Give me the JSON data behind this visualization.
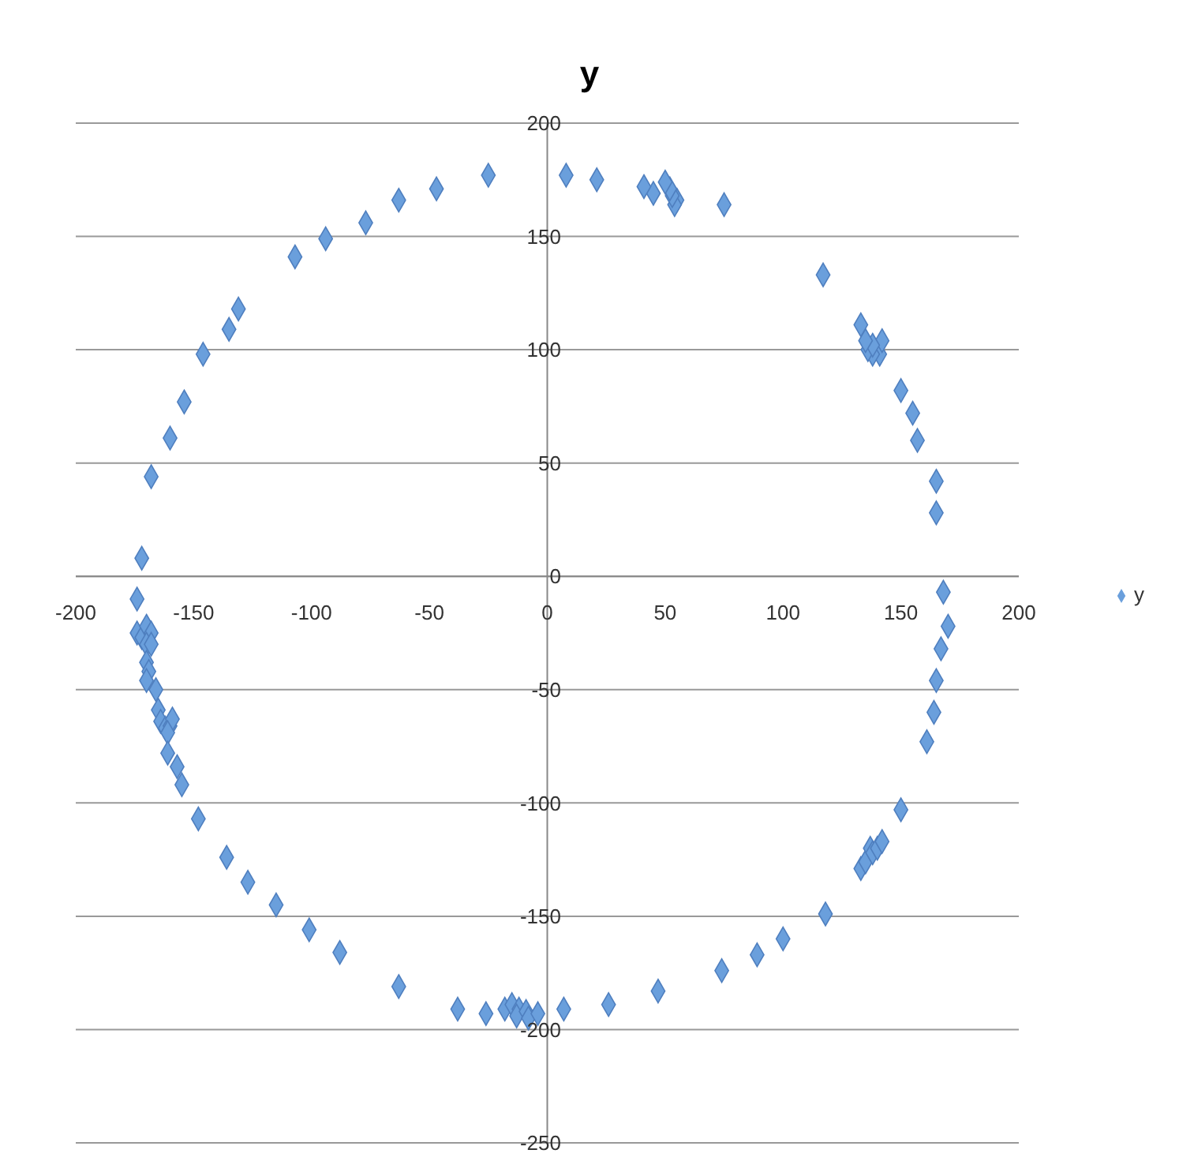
{
  "chart_data": {
    "type": "scatter",
    "title": "y",
    "marker": "diamond",
    "grid": "y",
    "legend": "right",
    "xlim": [
      -200,
      200
    ],
    "xticks": [
      -200,
      -150,
      -100,
      -50,
      0,
      50,
      100,
      150,
      200
    ],
    "ylim": [
      -250,
      200
    ],
    "yticks": [
      -250,
      -200,
      -150,
      -100,
      -50,
      0,
      50,
      100,
      150,
      200
    ],
    "series": [
      {
        "name": "y",
        "color": "#6a9fdc",
        "x": [
          -25,
          -47,
          -63,
          -77,
          -94,
          -107,
          -131,
          -135,
          -146,
          -154,
          -160,
          -168,
          -172,
          -174,
          -174,
          -172,
          -170,
          -168,
          -170,
          -168,
          -170,
          -169,
          -170,
          -166,
          -165,
          -164,
          -162,
          -160,
          -159,
          -161,
          -161,
          -157,
          -155,
          -148,
          -136,
          -127,
          -115,
          -101,
          -88,
          -63,
          -38,
          -26,
          -18,
          -15,
          -12,
          -13,
          -9,
          -8,
          -4,
          7,
          26,
          47,
          74,
          89,
          100,
          118,
          133,
          135,
          137,
          138,
          140,
          142,
          150,
          161,
          164,
          165,
          167,
          170,
          168,
          165,
          165,
          157,
          155,
          150,
          141,
          142,
          138,
          136,
          138,
          135,
          133,
          117,
          75,
          55,
          54,
          53,
          52,
          50,
          45,
          41,
          21,
          8
        ],
        "values": [
          177,
          171,
          166,
          156,
          149,
          141,
          118,
          109,
          98,
          77,
          61,
          44,
          8,
          -10,
          -25,
          -27,
          -22,
          -25,
          -30,
          -30,
          -38,
          -42,
          -46,
          -50,
          -59,
          -64,
          -67,
          -66,
          -63,
          -69,
          -78,
          -84,
          -92,
          -107,
          -124,
          -135,
          -145,
          -156,
          -166,
          -181,
          -191,
          -193,
          -191,
          -189,
          -191,
          -194,
          -192,
          -195,
          -193,
          -191,
          -189,
          -183,
          -174,
          -167,
          -160,
          -149,
          -129,
          -126,
          -120,
          -122,
          -120,
          -117,
          -103,
          -73,
          -60,
          -46,
          -32,
          -22,
          -7,
          28,
          42,
          60,
          72,
          82,
          98,
          104,
          98,
          100,
          102,
          104,
          111,
          133,
          164,
          166,
          164,
          168,
          171,
          174,
          169,
          172,
          175,
          177
        ]
      }
    ]
  }
}
